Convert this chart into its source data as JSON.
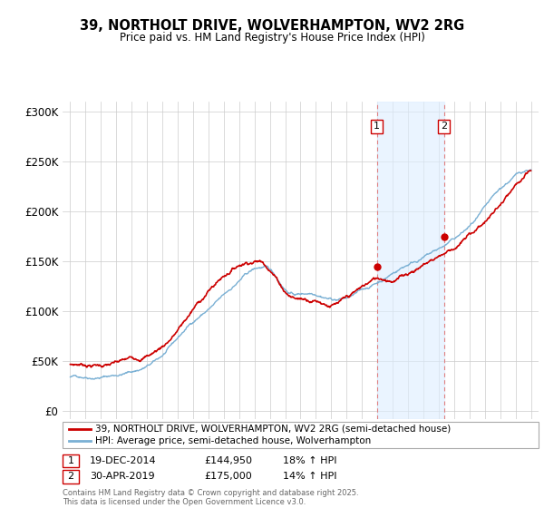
{
  "title": "39, NORTHOLT DRIVE, WOLVERHAMPTON, WV2 2RG",
  "subtitle": "Price paid vs. HM Land Registry's House Price Index (HPI)",
  "legend_line1": "39, NORTHOLT DRIVE, WOLVERHAMPTON, WV2 2RG (semi-detached house)",
  "legend_line2": "HPI: Average price, semi-detached house, Wolverhampton",
  "footnote": "Contains HM Land Registry data © Crown copyright and database right 2025.\nThis data is licensed under the Open Government Licence v3.0.",
  "annotation1_label": "1",
  "annotation1_date": "19-DEC-2014",
  "annotation1_price": "£144,950",
  "annotation1_hpi": "18% ↑ HPI",
  "annotation2_label": "2",
  "annotation2_date": "30-APR-2019",
  "annotation2_price": "£175,000",
  "annotation2_hpi": "14% ↑ HPI",
  "sale1_x": 2014.97,
  "sale1_y": 144950,
  "sale2_x": 2019.33,
  "sale2_y": 175000,
  "ylabel_ticks": [
    0,
    50000,
    100000,
    150000,
    200000,
    250000,
    300000
  ],
  "ylabel_labels": [
    "£0",
    "£50K",
    "£100K",
    "£150K",
    "£200K",
    "£250K",
    "£300K"
  ],
  "xlim": [
    1994.5,
    2025.5
  ],
  "ylim": [
    -8000,
    310000
  ],
  "hpi_color": "#7ab0d4",
  "price_color": "#cc0000",
  "vline_color": "#e08080",
  "shade_color": "#ddeeff",
  "background_color": "#ffffff",
  "grid_color": "#cccccc"
}
